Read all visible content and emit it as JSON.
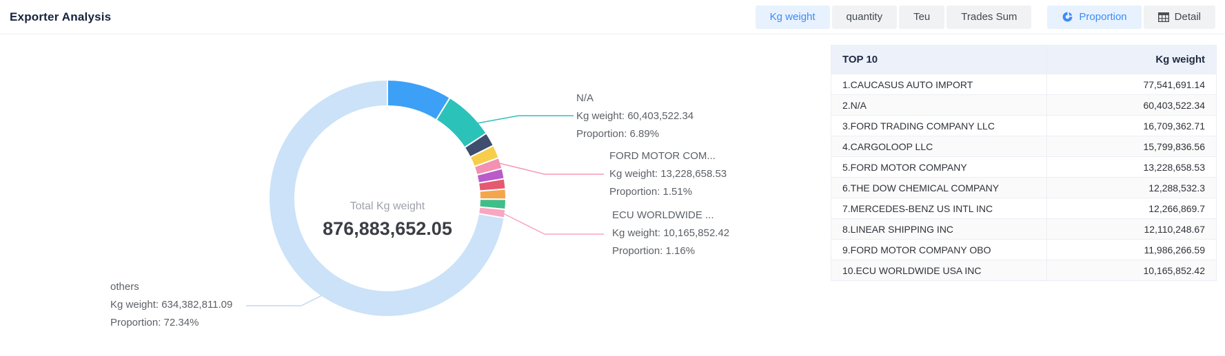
{
  "header": {
    "title": "Exporter Analysis",
    "accent_color": "#3D8AF7",
    "tabs": [
      {
        "label": "Kg weight",
        "active": true,
        "icon": null,
        "spacer_before": false
      },
      {
        "label": "quantity",
        "active": false,
        "icon": null,
        "spacer_before": false
      },
      {
        "label": "Teu",
        "active": false,
        "icon": null,
        "spacer_before": false
      },
      {
        "label": "Trades Sum",
        "active": false,
        "icon": null,
        "spacer_before": false
      },
      {
        "label": "Proportion",
        "active": true,
        "icon": "pie",
        "spacer_before": true
      },
      {
        "label": "Detail",
        "active": false,
        "icon": "table",
        "spacer_before": false
      }
    ]
  },
  "chart": {
    "center_label": "Total Kg weight",
    "center_value": "876,883,652.05",
    "annotations": [
      {
        "name": "N/A",
        "kg_line": "Kg weight: 60,403,522.34",
        "prop_line": "Proportion: 6.89%",
        "color": "#2BC2B9"
      },
      {
        "name": "FORD MOTOR COM...",
        "kg_line": "Kg weight: 13,228,658.53",
        "prop_line": "Proportion: 1.51%",
        "color": "#F598B4"
      },
      {
        "name": "ECU WORLDWIDE ...",
        "kg_line": "Kg weight: 10,165,852.42",
        "prop_line": "Proportion: 1.16%",
        "color": "#F9A6C1"
      },
      {
        "name": "others",
        "kg_line": "Kg weight: 634,382,811.09",
        "prop_line": "Proportion: 72.34%",
        "color": "#BDD9F5"
      }
    ]
  },
  "chart_data": {
    "type": "pie",
    "title": "Total Kg weight",
    "total": 876883652.05,
    "inner_radius_ratio": 0.78,
    "legend": "none",
    "labels": [
      "CAUCASUS AUTO IMPORT",
      "N/A",
      "FORD TRADING COMPANY LLC",
      "CARGOLOOP LLC",
      "FORD MOTOR COMPANY",
      "THE DOW CHEMICAL COMPANY",
      "MERCEDES-BENZ US INTL INC",
      "LINEAR SHIPPING INC",
      "FORD MOTOR COMPANY OBO",
      "ECU WORLDWIDE USA INC",
      "others"
    ],
    "values": [
      77541691.14,
      60403522.34,
      16709362.71,
      15799836.56,
      13228658.53,
      12288532.3,
      12266869.7,
      12110248.67,
      11986266.59,
      10165852.42,
      634382811.09
    ],
    "proportions_pct": [
      8.84,
      6.89,
      1.91,
      1.8,
      1.51,
      1.4,
      1.4,
      1.38,
      1.37,
      1.16,
      72.34
    ],
    "colors": [
      "#3CA0F6",
      "#2BC2B9",
      "#3F4E6E",
      "#F7CE4B",
      "#F291B1",
      "#B95BC9",
      "#E55A6E",
      "#F5A54C",
      "#3FBE8A",
      "#F9A6C1",
      "#CBE2F8"
    ]
  },
  "table": {
    "headers": [
      "TOP 10",
      "Kg weight"
    ],
    "rows": [
      {
        "name": "1.CAUCASUS AUTO IMPORT",
        "value": "77,541,691.14"
      },
      {
        "name": "2.N/A",
        "value": "60,403,522.34"
      },
      {
        "name": "3.FORD TRADING COMPANY LLC",
        "value": "16,709,362.71"
      },
      {
        "name": "4.CARGOLOOP LLC",
        "value": "15,799,836.56"
      },
      {
        "name": "5.FORD MOTOR COMPANY",
        "value": "13,228,658.53"
      },
      {
        "name": "6.THE DOW CHEMICAL COMPANY",
        "value": "12,288,532.3"
      },
      {
        "name": "7.MERCEDES-BENZ US INTL INC",
        "value": "12,266,869.7"
      },
      {
        "name": "8.LINEAR SHIPPING INC",
        "value": "12,110,248.67"
      },
      {
        "name": "9.FORD MOTOR COMPANY OBO",
        "value": "11,986,266.59"
      },
      {
        "name": "10.ECU WORLDWIDE USA INC",
        "value": "10,165,852.42"
      }
    ]
  }
}
